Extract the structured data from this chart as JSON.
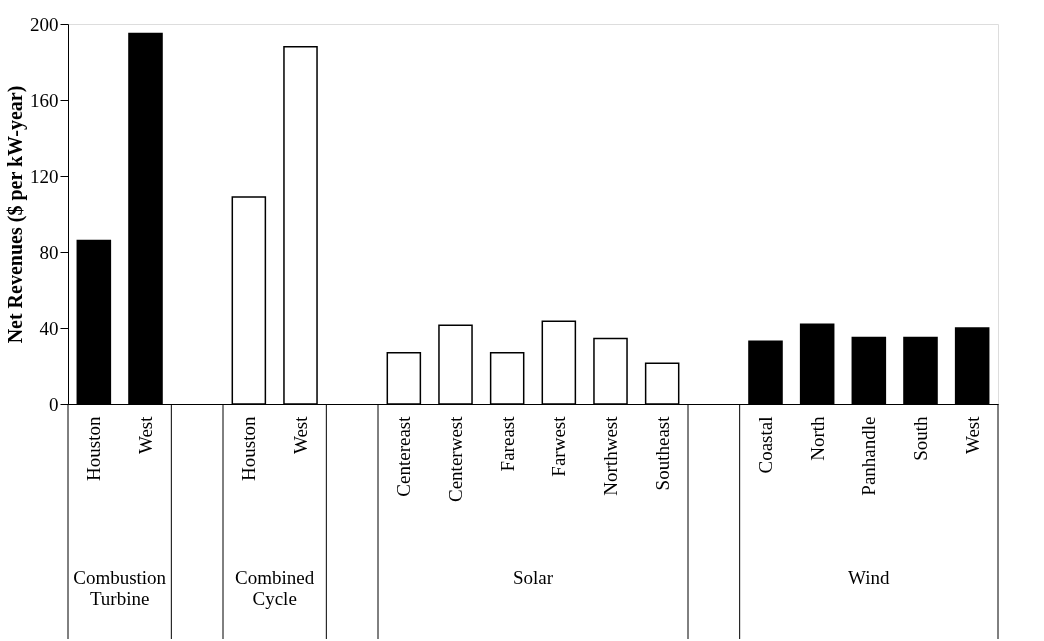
{
  "chart_data": {
    "type": "bar",
    "ylabel": "Net Revenues ($ per kW-year)",
    "categories": [
      "Houston",
      "West",
      null,
      "Houston",
      "West",
      null,
      "Centereast",
      "Centerwest",
      "Fareast",
      "Farwest",
      "Northwest",
      "Southeast",
      null,
      "Coastal",
      "North",
      "Panhandle",
      "South",
      "West"
    ],
    "values": [
      86,
      195,
      null,
      109,
      188,
      null,
      27,
      41.5,
      27,
      43.5,
      34.5,
      21.5,
      null,
      33,
      42,
      35,
      35,
      40
    ],
    "colors": [
      "#000000",
      "#000000",
      null,
      "#ffffff",
      "#ffffff",
      null,
      "#ffffff",
      "#ffffff",
      "#ffffff",
      "#ffffff",
      "#ffffff",
      "#ffffff",
      null,
      "#000000",
      "#000000",
      "#000000",
      "#000000",
      "#000000"
    ],
    "ylim": [
      0,
      200
    ],
    "yticks": [
      0,
      40,
      80,
      120,
      160,
      200
    ],
    "grid": false,
    "annotations": [
      "Combustion Turbine",
      "Combined Cycle",
      "Solar",
      "Wind"
    ]
  }
}
